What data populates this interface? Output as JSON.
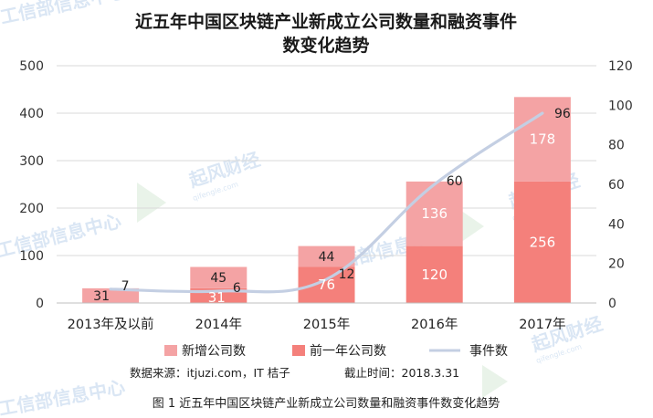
{
  "chart_data": {
    "type": "bar",
    "stacked": true,
    "title_line1": "近五年中国区块链产业新成立公司数量和融资事件",
    "title_line2": "数变化趋势",
    "categories": [
      "2013年及以前",
      "2014年",
      "2015年",
      "2016年",
      "2017年"
    ],
    "series": [
      {
        "name": "前一年公司数",
        "values": [
          null,
          31,
          76,
          120,
          256
        ],
        "labels": [
          "",
          "31",
          "76",
          "120",
          "256"
        ],
        "color": "#f4807b",
        "axis": "left"
      },
      {
        "name": "新增公司数",
        "values": [
          31,
          45,
          44,
          136,
          178
        ],
        "labels": [
          "31",
          "45",
          "44",
          "136",
          "178"
        ],
        "color": "#f4a3a4",
        "axis": "left"
      },
      {
        "name": "事件数",
        "type": "line",
        "values": [
          7,
          6,
          12,
          60,
          96
        ],
        "labels": [
          "7",
          "6",
          "12",
          "60",
          "96"
        ],
        "color": "#c4cfe3",
        "axis": "right"
      }
    ],
    "y_left": {
      "min": 0,
      "max": 500,
      "ticks": [
        "0",
        "100",
        "200",
        "300",
        "400",
        "500"
      ]
    },
    "y_right": {
      "min": 0,
      "max": 120,
      "ticks": [
        "0",
        "20",
        "40",
        "60",
        "80",
        "100",
        "120"
      ]
    },
    "grid": true,
    "legend_position": "bottom",
    "legend_order": [
      "新增公司数",
      "前一年公司数",
      "事件数"
    ]
  },
  "source": "数据来源：itjuzi.com，IT 桔子",
  "cutoff": "截止时间：2018.3.31",
  "caption": "图 1   近五年中国区块链产业新成立公司数量和融资事件数变化趋势",
  "watermarks": [
    "工信部信息中心",
    "起风财经",
    "qifengle.com"
  ],
  "colors": {
    "grid": "#d9d9d9",
    "axis": "#bfbfbf"
  }
}
